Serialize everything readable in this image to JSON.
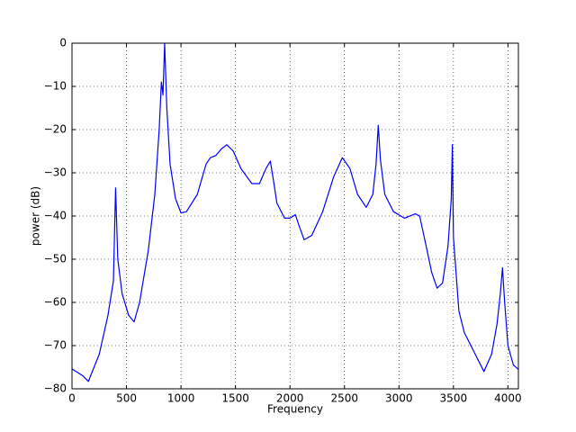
{
  "chart_data": {
    "type": "line",
    "xlabel": "Frequency",
    "ylabel": "power (dB)",
    "x": [
      0,
      100,
      150,
      250,
      330,
      380,
      400,
      420,
      460,
      520,
      570,
      620,
      700,
      760,
      800,
      820,
      835,
      850,
      870,
      900,
      950,
      1000,
      1050,
      1150,
      1230,
      1270,
      1320,
      1370,
      1420,
      1480,
      1550,
      1650,
      1720,
      1780,
      1820,
      1850,
      1880,
      1950,
      2000,
      2050,
      2080,
      2130,
      2200,
      2300,
      2400,
      2480,
      2550,
      2620,
      2700,
      2760,
      2790,
      2810,
      2830,
      2870,
      2950,
      3050,
      3150,
      3190,
      3250,
      3300,
      3350,
      3400,
      3450,
      3480,
      3490,
      3500,
      3550,
      3600,
      3700,
      3780,
      3850,
      3900,
      3930,
      3950,
      3970,
      4000,
      4050,
      4096
    ],
    "series": [
      {
        "color": "#0000ff",
        "values": [
          -75.4,
          -77,
          -78.3,
          -72,
          -63,
          -55,
          -33.5,
          -50,
          -58,
          -63,
          -64.5,
          -60,
          -48,
          -35,
          -20,
          -9,
          -12,
          0,
          -15,
          -28,
          -36,
          -39.3,
          -39,
          -35,
          -28,
          -26.5,
          -26,
          -24.5,
          -23.5,
          -25,
          -29,
          -32.5,
          -32.5,
          -29,
          -27.3,
          -32,
          -37,
          -40.5,
          -40.5,
          -39.7,
          -42,
          -45.5,
          -44.5,
          -39,
          -31,
          -26.5,
          -29,
          -35,
          -38,
          -35,
          -28,
          -19,
          -27,
          -35,
          -39,
          -40.5,
          -39.5,
          -40,
          -47,
          -53,
          -56.7,
          -55.5,
          -47,
          -36,
          -23.5,
          -45,
          -62,
          -67,
          -72,
          -76,
          -72,
          -65,
          -58,
          -52,
          -60,
          -70,
          -74.5,
          -75.5
        ]
      }
    ],
    "xlim": [
      0,
      4096
    ],
    "ylim": [
      -80,
      0
    ],
    "xticks": [
      0,
      500,
      1000,
      1500,
      2000,
      2500,
      3000,
      3500,
      4000
    ],
    "yticks": [
      {
        "value": -80,
        "label": "−80"
      },
      {
        "value": -70,
        "label": "−70"
      },
      {
        "value": -60,
        "label": "−60"
      },
      {
        "value": -50,
        "label": "−50"
      },
      {
        "value": -40,
        "label": "−40"
      },
      {
        "value": -30,
        "label": "−30"
      },
      {
        "value": -20,
        "label": "−20"
      },
      {
        "value": -10,
        "label": "−10"
      },
      0
    ],
    "grid": true
  }
}
